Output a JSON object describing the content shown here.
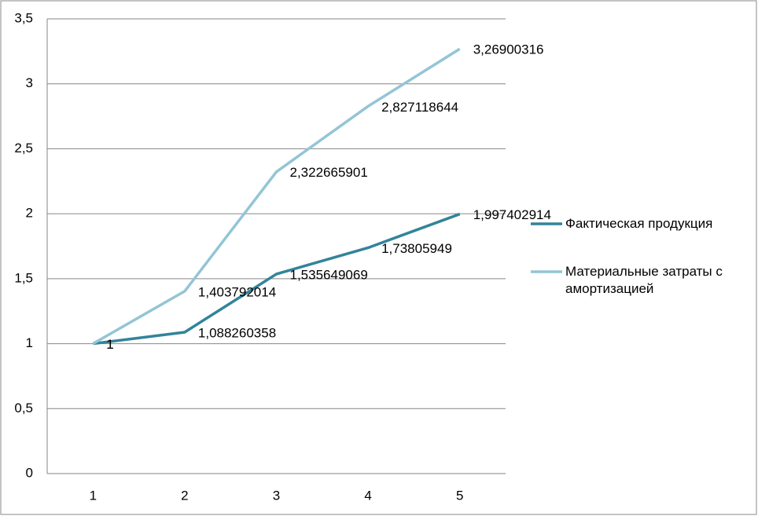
{
  "chart_data": {
    "type": "line",
    "categories": [
      "1",
      "2",
      "3",
      "4",
      "5"
    ],
    "series": [
      {
        "name": "Фактическая продукция",
        "color": "#31849b",
        "values": [
          1,
          1.088260358,
          1.535649069,
          1.73805949,
          1.997402914
        ],
        "value_labels": [
          "1",
          "1,088260358",
          "1,535649069",
          "1,73805949",
          "1,997402914"
        ]
      },
      {
        "name": "Материальные затраты с амортизацией",
        "color": "#93c5d6",
        "values": [
          1,
          1.403792014,
          2.322665901,
          2.827118644,
          3.26900316
        ],
        "value_labels": [
          "1",
          "1,403792014",
          "2,322665901",
          "2,827118644",
          "3,26900316"
        ]
      }
    ],
    "ylim": [
      0,
      3.5
    ],
    "yticks": [
      0,
      {
        "value": 0.5,
        "label": "0,5"
      },
      1,
      {
        "value": 1.5,
        "label": "1,5"
      },
      2,
      {
        "value": 2.5,
        "label": "2,5"
      },
      3,
      {
        "value": 3.5,
        "label": "3,5"
      }
    ],
    "grid": true,
    "legend": "right"
  }
}
